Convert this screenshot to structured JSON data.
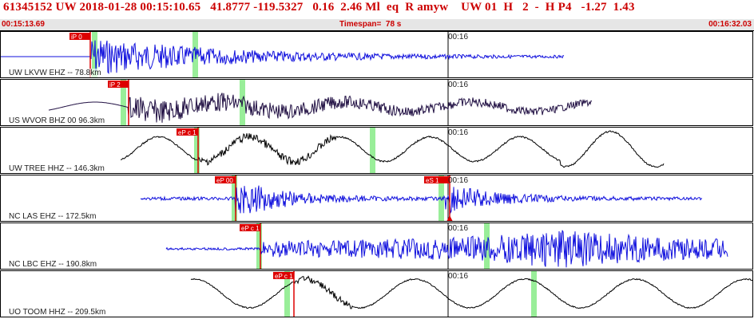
{
  "header": {
    "text": "61345152 UW 2018-01-28 00:15:10.65   41.8777 -119.5327   0.16  2.46 Ml  eq  R amyw    UW 01  H   2  -  H P4   -1.27  1.43",
    "start_time": "00:15:13.69",
    "timespan": "Timespan=  78 s",
    "end_time": "00:16:32.03"
  },
  "colors": {
    "pick": "#dd0000",
    "highlight": "#99ee99",
    "blue_trace": "#1111dd",
    "dark_trace": "#221144",
    "black_trace": "#000000"
  },
  "panels": [
    {
      "label": "UW LKVW EHZ -- 78.8km",
      "time_mark": "00:16",
      "picks": [
        {
          "name": "iP 0"
        }
      ]
    },
    {
      "label": "US WVOR BHZ 00 96.3km",
      "time_mark": "00:16",
      "picks": [
        {
          "name": "iP 2"
        }
      ]
    },
    {
      "label": "UW TREE HHZ -- 146.3km",
      "time_mark": "00:16",
      "picks": [
        {
          "name": "eP c 1"
        }
      ]
    },
    {
      "label": "NC LAS EHZ -- 172.5km",
      "time_mark": "00:16",
      "picks": [
        {
          "name": "eP 00"
        },
        {
          "name": "eS 1"
        }
      ]
    },
    {
      "label": "NC LBC EHZ -- 190.8km",
      "time_mark": "00:16",
      "picks": [
        {
          "name": "eP c 1"
        }
      ]
    },
    {
      "label": "UO TOOM HHZ -- 209.5km",
      "time_mark": "00:16",
      "picks": [
        {
          "name": "eP c 1"
        }
      ]
    }
  ]
}
